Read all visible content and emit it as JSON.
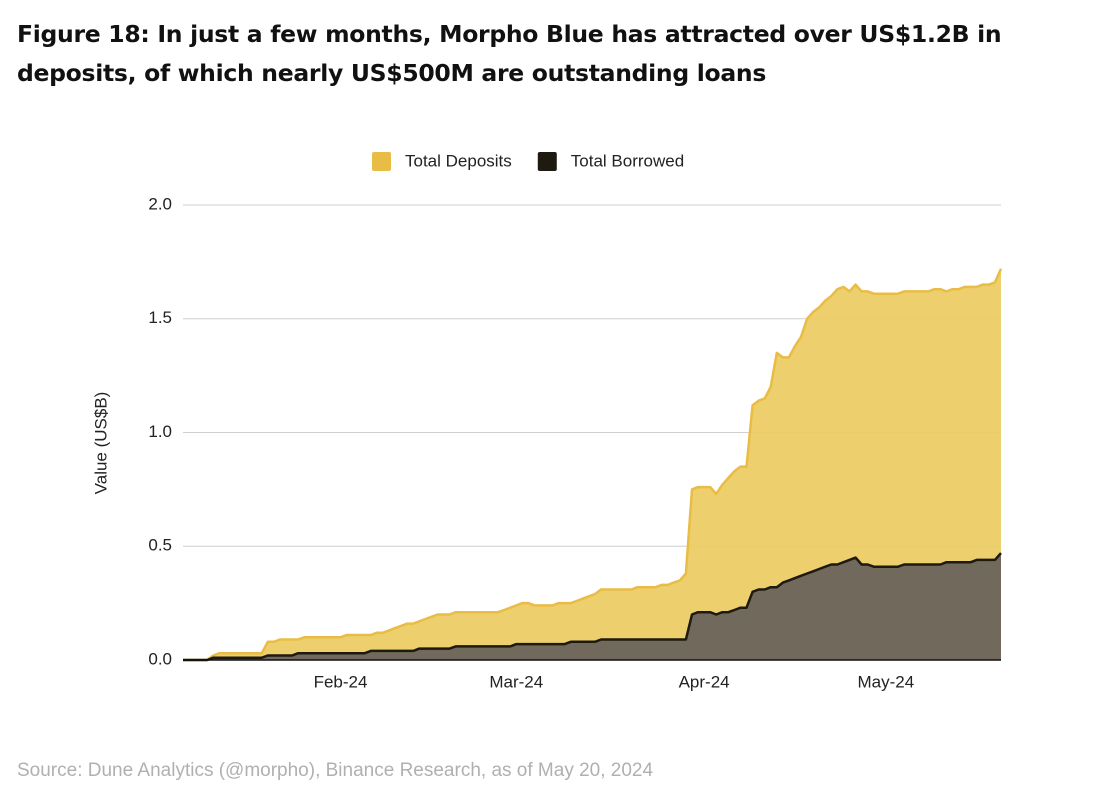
{
  "chart_data": {
    "type": "area",
    "title": "Figure 18: In just a few months, Morpho Blue has attracted over US$1.2B in deposits, of which nearly US$500M are outstanding loans",
    "ylabel": "Value (US$B)",
    "source": "Source: Dune Analytics (@morpho), Binance Research, as of May 20, 2024",
    "categories": [
      null,
      null,
      null,
      null,
      null,
      null,
      null,
      null,
      null,
      null,
      null,
      null,
      null,
      null,
      null,
      null,
      null,
      null,
      null,
      null,
      null,
      null,
      null,
      null,
      null,
      null,
      "Feb-24",
      null,
      null,
      null,
      null,
      null,
      null,
      null,
      null,
      null,
      null,
      null,
      null,
      null,
      null,
      null,
      null,
      null,
      null,
      null,
      null,
      null,
      null,
      null,
      null,
      null,
      null,
      null,
      null,
      "Mar-24",
      null,
      null,
      null,
      null,
      null,
      null,
      null,
      null,
      null,
      null,
      null,
      null,
      null,
      null,
      null,
      null,
      null,
      null,
      null,
      null,
      null,
      null,
      null,
      null,
      null,
      null,
      null,
      null,
      null,
      null,
      "Apr-24",
      null,
      null,
      null,
      null,
      null,
      null,
      null,
      null,
      null,
      null,
      null,
      null,
      null,
      null,
      null,
      null,
      null,
      null,
      null,
      null,
      null,
      null,
      null,
      null,
      null,
      null,
      null,
      null,
      null,
      "May-24",
      null,
      null,
      null,
      null,
      null,
      null,
      null,
      null,
      null,
      null,
      null,
      null,
      null,
      null,
      null,
      null,
      null,
      null,
      null
    ],
    "series": [
      {
        "name": "Total Deposits",
        "color": "#e9bd45",
        "fill": "#eccb63",
        "values": [
          0,
          0,
          0,
          0,
          0,
          0.02,
          0.03,
          0.03,
          0.03,
          0.03,
          0.03,
          0.03,
          0.03,
          0.03,
          0.08,
          0.08,
          0.09,
          0.09,
          0.09,
          0.09,
          0.1,
          0.1,
          0.1,
          0.1,
          0.1,
          0.1,
          0.1,
          0.11,
          0.11,
          0.11,
          0.11,
          0.11,
          0.12,
          0.12,
          0.13,
          0.14,
          0.15,
          0.16,
          0.16,
          0.17,
          0.18,
          0.19,
          0.2,
          0.2,
          0.2,
          0.21,
          0.21,
          0.21,
          0.21,
          0.21,
          0.21,
          0.21,
          0.21,
          0.22,
          0.23,
          0.24,
          0.25,
          0.25,
          0.24,
          0.24,
          0.24,
          0.24,
          0.25,
          0.25,
          0.25,
          0.26,
          0.27,
          0.28,
          0.29,
          0.31,
          0.31,
          0.31,
          0.31,
          0.31,
          0.31,
          0.32,
          0.32,
          0.32,
          0.32,
          0.33,
          0.33,
          0.34,
          0.35,
          0.38,
          0.75,
          0.76,
          0.76,
          0.76,
          0.73,
          0.77,
          0.8,
          0.83,
          0.85,
          0.85,
          1.12,
          1.14,
          1.15,
          1.2,
          1.35,
          1.33,
          1.33,
          1.38,
          1.42,
          1.5,
          1.53,
          1.55,
          1.58,
          1.6,
          1.63,
          1.64,
          1.62,
          1.65,
          1.62,
          1.62,
          1.61,
          1.61,
          1.61,
          1.61,
          1.61,
          1.62,
          1.62,
          1.62,
          1.62,
          1.62,
          1.63,
          1.63,
          1.62,
          1.63,
          1.63,
          1.64,
          1.64,
          1.64,
          1.65,
          1.65,
          1.66,
          1.72
        ]
      },
      {
        "name": "Total Borrowed",
        "color": "#1f1a0f",
        "fill": "#67625a",
        "values": [
          0,
          0,
          0,
          0,
          0,
          0.01,
          0.01,
          0.01,
          0.01,
          0.01,
          0.01,
          0.01,
          0.01,
          0.01,
          0.02,
          0.02,
          0.02,
          0.02,
          0.02,
          0.03,
          0.03,
          0.03,
          0.03,
          0.03,
          0.03,
          0.03,
          0.03,
          0.03,
          0.03,
          0.03,
          0.03,
          0.04,
          0.04,
          0.04,
          0.04,
          0.04,
          0.04,
          0.04,
          0.04,
          0.05,
          0.05,
          0.05,
          0.05,
          0.05,
          0.05,
          0.06,
          0.06,
          0.06,
          0.06,
          0.06,
          0.06,
          0.06,
          0.06,
          0.06,
          0.06,
          0.07,
          0.07,
          0.07,
          0.07,
          0.07,
          0.07,
          0.07,
          0.07,
          0.07,
          0.08,
          0.08,
          0.08,
          0.08,
          0.08,
          0.09,
          0.09,
          0.09,
          0.09,
          0.09,
          0.09,
          0.09,
          0.09,
          0.09,
          0.09,
          0.09,
          0.09,
          0.09,
          0.09,
          0.09,
          0.2,
          0.21,
          0.21,
          0.21,
          0.2,
          0.21,
          0.21,
          0.22,
          0.23,
          0.23,
          0.3,
          0.31,
          0.31,
          0.32,
          0.32,
          0.34,
          0.35,
          0.36,
          0.37,
          0.38,
          0.39,
          0.4,
          0.41,
          0.42,
          0.42,
          0.43,
          0.44,
          0.45,
          0.42,
          0.42,
          0.41,
          0.41,
          0.41,
          0.41,
          0.41,
          0.42,
          0.42,
          0.42,
          0.42,
          0.42,
          0.42,
          0.42,
          0.43,
          0.43,
          0.43,
          0.43,
          0.43,
          0.44,
          0.44,
          0.44,
          0.44,
          0.47
        ]
      }
    ],
    "ylim": [
      0,
      2
    ],
    "yticks": [
      {
        "value": 0,
        "label": "0.0"
      },
      0.5,
      {
        "value": 1,
        "label": "1.0"
      },
      1.5,
      {
        "value": 2,
        "label": "2.0"
      }
    ],
    "grid": true,
    "legend": "top"
  }
}
